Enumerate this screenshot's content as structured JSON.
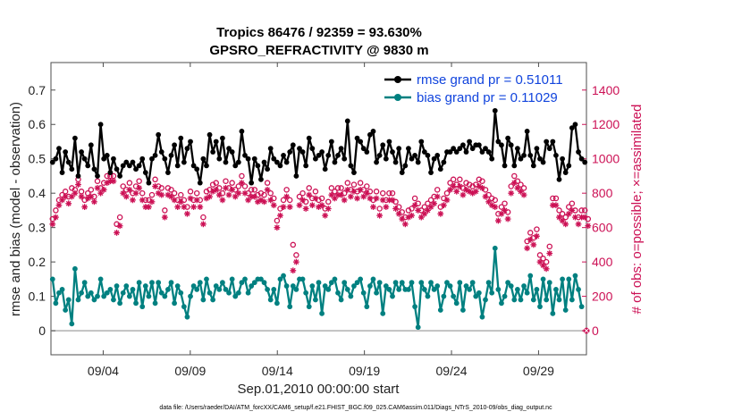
{
  "colors": {
    "rmse": "#000000",
    "bias": "#008080",
    "obs": "#cc1155",
    "legend_text": "#1144dd",
    "zero_line": "#b0b0b0"
  },
  "chart_data": {
    "type": "line",
    "title": [
      "Tropics 86476 / 92359 = 93.630%",
      "GPSRO_REFRACTIVITY @ 9830 m"
    ],
    "xlabel": "Sep.01,2010 00:00:00 start",
    "ylabel": "rmse and bias (model - observation)",
    "ylabel_right": "# of obs: o=possible; ×=assimilated",
    "xlim": [
      0.0,
      30.75
    ],
    "ylim": [
      -0.07,
      0.78
    ],
    "ylim_right": [
      -140,
      1560
    ],
    "x_ticks": [
      {
        "x": 3,
        "label": "09/04"
      },
      {
        "x": 8,
        "label": "09/09"
      },
      {
        "x": 13,
        "label": "09/14"
      },
      {
        "x": 18,
        "label": "09/19"
      },
      {
        "x": 23,
        "label": "09/24"
      },
      {
        "x": 28,
        "label": "09/29"
      }
    ],
    "y_ticks": [
      {
        "y": 0,
        "label": "0"
      },
      {
        "y": 0.1,
        "label": "0.1"
      },
      {
        "y": 0.2,
        "label": "0.2"
      },
      {
        "y": 0.3,
        "label": "0.3"
      },
      {
        "y": 0.4,
        "label": "0.4"
      },
      {
        "y": 0.5,
        "label": "0.5"
      },
      {
        "y": 0.6,
        "label": "0.6"
      },
      {
        "y": 0.7,
        "label": "0.7"
      }
    ],
    "y_ticks_right": [
      {
        "y": 0,
        "label": "0"
      },
      {
        "y": 200,
        "label": "200"
      },
      {
        "y": 400,
        "label": "400"
      },
      {
        "y": 600,
        "label": "600"
      },
      {
        "y": 800,
        "label": "800"
      },
      {
        "y": 1000,
        "label": "1000"
      },
      {
        "y": 1200,
        "label": "1200"
      },
      {
        "y": 1400,
        "label": "1400"
      }
    ],
    "legend": [
      {
        "name": "rmse grand pr = 0.51011",
        "series": "rmse"
      },
      {
        "name": "bias grand pr = 0.11029",
        "series": "bias"
      }
    ],
    "legend_location": "top-right",
    "series": [
      {
        "name": "rmse",
        "axis": "left",
        "marker": "dot",
        "values": [
          0.49,
          0.5,
          0.53,
          0.46,
          0.52,
          0.49,
          0.47,
          0.56,
          0.45,
          0.52,
          0.5,
          0.48,
          0.54,
          0.47,
          0.45,
          0.6,
          0.5,
          0.51,
          0.46,
          0.5,
          0.47,
          0.45,
          0.48,
          0.49,
          0.48,
          0.49,
          0.47,
          0.48,
          0.5,
          0.46,
          0.43,
          0.5,
          0.51,
          0.57,
          0.52,
          0.5,
          0.46,
          0.51,
          0.54,
          0.48,
          0.56,
          0.49,
          0.53,
          0.55,
          0.48,
          0.47,
          0.43,
          0.5,
          0.48,
          0.57,
          0.52,
          0.55,
          0.5,
          0.56,
          0.49,
          0.53,
          0.52,
          0.48,
          0.49,
          0.58,
          0.51,
          0.5,
          0.43,
          0.5,
          0.48,
          0.44,
          0.49,
          0.47,
          0.53,
          0.5,
          0.49,
          0.48,
          0.51,
          0.49,
          0.52,
          0.54,
          0.45,
          0.53,
          0.52,
          0.48,
          0.56,
          0.53,
          0.5,
          0.51,
          0.52,
          0.47,
          0.51,
          0.55,
          0.49,
          0.51,
          0.53,
          0.5,
          0.61,
          0.48,
          0.46,
          0.56,
          0.55,
          0.53,
          0.52,
          0.57,
          0.58,
          0.49,
          0.51,
          0.54,
          0.5,
          0.55,
          0.52,
          0.49,
          0.53,
          0.46,
          0.48,
          0.53,
          0.5,
          0.51,
          0.49,
          0.55,
          0.52,
          0.51,
          0.46,
          0.5,
          0.51,
          0.47,
          0.49,
          0.52,
          0.52,
          0.53,
          0.52,
          0.53,
          0.54,
          0.52,
          0.55,
          0.53,
          0.54,
          0.54,
          0.52,
          0.53,
          0.52,
          0.5,
          0.64,
          0.55,
          0.54,
          0.48,
          0.56,
          0.54,
          0.48,
          0.53,
          0.5,
          0.51,
          0.58,
          0.51,
          0.48,
          0.53,
          0.5,
          0.49,
          0.55,
          0.53,
          0.55,
          0.51,
          0.44,
          0.5,
          0.46,
          0.48,
          0.59,
          0.6,
          0.52,
          0.5,
          0.49
        ]
      },
      {
        "name": "bias",
        "axis": "left",
        "marker": "dot",
        "values": [
          0.15,
          0.08,
          0.11,
          0.12,
          0.06,
          0.09,
          0.02,
          0.18,
          0.09,
          0.11,
          0.14,
          0.1,
          0.11,
          0.09,
          0.1,
          0.15,
          0.1,
          0.11,
          0.12,
          0.09,
          0.13,
          0.08,
          0.11,
          0.13,
          0.1,
          0.12,
          0.08,
          0.14,
          0.07,
          0.13,
          0.1,
          0.14,
          0.08,
          0.14,
          0.11,
          0.1,
          0.12,
          0.14,
          0.08,
          0.13,
          0.11,
          0.07,
          0.04,
          0.1,
          0.13,
          0.12,
          0.14,
          0.09,
          0.15,
          0.11,
          0.09,
          0.13,
          0.12,
          0.14,
          0.12,
          0.11,
          0.15,
          0.1,
          0.11,
          0.14,
          0.15,
          0.11,
          0.13,
          0.14,
          0.15,
          0.15,
          0.14,
          0.12,
          0.09,
          0.12,
          0.08,
          0.15,
          0.16,
          0.13,
          0.07,
          0.13,
          0.12,
          0.15,
          0.15,
          0.11,
          0.07,
          0.13,
          0.09,
          0.14,
          0.05,
          0.13,
          0.12,
          0.14,
          0.15,
          0.11,
          0.09,
          0.14,
          0.12,
          0.1,
          0.13,
          0.14,
          0.15,
          0.11,
          0.07,
          0.13,
          0.15,
          0.11,
          0.14,
          0.05,
          0.13,
          0.12,
          0.1,
          0.14,
          0.12,
          0.14,
          0.12,
          0.12,
          0.14,
          0.07,
          0.01,
          0.14,
          0.12,
          0.1,
          0.14,
          0.12,
          0.13,
          0.06,
          0.1,
          0.14,
          0.13,
          0.1,
          0.08,
          0.14,
          0.06,
          0.13,
          0.12,
          0.14,
          0.1,
          0.11,
          0.04,
          0.09,
          0.14,
          0.11,
          0.24,
          0.12,
          0.08,
          0.1,
          0.14,
          0.13,
          0.09,
          0.12,
          0.09,
          0.13,
          0.11,
          0.16,
          0.09,
          0.12,
          0.07,
          0.15,
          0.09,
          0.14,
          0.05,
          0.12,
          0.09,
          0.15,
          0.06,
          0.15,
          0.09,
          0.16,
          0.12,
          0.07
        ]
      },
      {
        "name": "possible",
        "axis": "right",
        "marker": "circle",
        "values": [
          650,
          700,
          760,
          790,
          810,
          780,
          830,
          820,
          880,
          810,
          760,
          800,
          820,
          780,
          870,
          830,
          860,
          900,
          900,
          900,
          620,
          660,
          840,
          820,
          860,
          800,
          840,
          870,
          800,
          760,
          760,
          790,
          880,
          840,
          830,
          700,
          830,
          820,
          800,
          760,
          790,
          760,
          720,
          810,
          760,
          800,
          760,
          660,
          810,
          820,
          850,
          860,
          830,
          800,
          870,
          830,
          860,
          820,
          840,
          900,
          840,
          800,
          820,
          820,
          790,
          800,
          790,
          860,
          800,
          770,
          640,
          710,
          760,
          820,
          760,
          500,
          440,
          780,
          800,
          750,
          830,
          770,
          810,
          760,
          770,
          710,
          750,
          830,
          810,
          830,
          830,
          800,
          860,
          820,
          850,
          810,
          860,
          820,
          840,
          810,
          760,
          810,
          710,
          800,
          760,
          800,
          800,
          750,
          720,
          690,
          660,
          700,
          710,
          770,
          740,
          700,
          720,
          740,
          760,
          780,
          820,
          720,
          770,
          800,
          860,
          880,
          850,
          880,
          830,
          860,
          850,
          840,
          850,
          880,
          870,
          820,
          790,
          770,
          760,
          680,
          720,
          740,
          690,
          840,
          900,
          870,
          850,
          830,
          520,
          570,
          540,
          590,
          440,
          420,
          400,
          490,
          770,
          770,
          700,
          680,
          660,
          720,
          740,
          700,
          660,
          700,
          700,
          650
        ]
      },
      {
        "name": "assimilated",
        "axis": "right",
        "marker": "asterisk",
        "values": [
          620,
          660,
          730,
          760,
          780,
          740,
          780,
          800,
          850,
          780,
          720,
          770,
          780,
          750,
          830,
          800,
          820,
          860,
          870,
          870,
          570,
          610,
          800,
          780,
          820,
          760,
          800,
          830,
          760,
          720,
          720,
          750,
          840,
          800,
          790,
          660,
          790,
          780,
          760,
          720,
          750,
          720,
          680,
          770,
          720,
          760,
          720,
          620,
          770,
          780,
          810,
          820,
          790,
          760,
          830,
          790,
          820,
          780,
          800,
          860,
          800,
          760,
          780,
          780,
          750,
          760,
          750,
          820,
          760,
          730,
          600,
          670,
          720,
          780,
          720,
          350,
          400,
          730,
          760,
          710,
          790,
          730,
          770,
          720,
          730,
          670,
          710,
          790,
          770,
          790,
          790,
          760,
          820,
          780,
          810,
          770,
          820,
          780,
          800,
          770,
          720,
          770,
          670,
          760,
          720,
          760,
          760,
          710,
          680,
          650,
          620,
          660,
          670,
          730,
          700,
          660,
          680,
          700,
          720,
          740,
          780,
          680,
          730,
          760,
          820,
          840,
          810,
          840,
          790,
          820,
          810,
          800,
          810,
          840,
          830,
          780,
          750,
          730,
          720,
          640,
          680,
          700,
          650,
          800,
          860,
          830,
          810,
          790,
          480,
          530,
          500,
          550,
          400,
          380,
          360,
          450,
          730,
          730,
          660,
          640,
          620,
          680,
          700,
          660,
          620,
          660,
          660,
          610
        ]
      }
    ],
    "zero_point_last": {
      "x": 30.75,
      "y": 0
    }
  },
  "footer": "data file: /Users/raeder/DAI/ATM_forcXX/CAM6_setup/f.e21.FHIST_BGC.f09_025.CAM6assim.011/Diags_NTrS_2010-09/obs_diag_output.nc"
}
